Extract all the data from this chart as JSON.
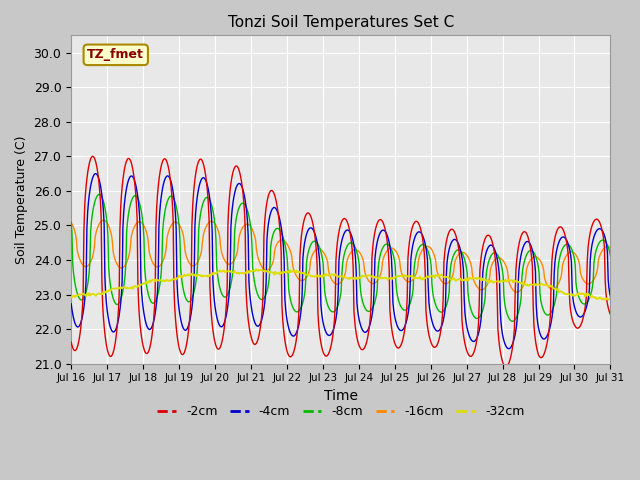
{
  "title": "Tonzi Soil Temperatures Set C",
  "xlabel": "Time",
  "ylabel": "Soil Temperature (C)",
  "ylim": [
    21.0,
    30.5
  ],
  "yticks": [
    21.0,
    22.0,
    23.0,
    24.0,
    25.0,
    26.0,
    27.0,
    28.0,
    29.0,
    30.0
  ],
  "fig_bg_color": "#c8c8c8",
  "plot_bg_color": "#e8e8e8",
  "legend_label": "TZ_fmet",
  "legend_box_facecolor": "#ffffcc",
  "legend_text_color": "#880000",
  "legend_edge_color": "#aa8800",
  "series_colors": {
    "-2cm": "#dd0000",
    "-4cm": "#0000cc",
    "-8cm": "#00bb00",
    "-16cm": "#ff8800",
    "-32cm": "#dddd00"
  },
  "n_points": 720,
  "x_start": 16.0,
  "x_end": 31.0,
  "xtick_positions": [
    16,
    17,
    18,
    19,
    20,
    21,
    22,
    23,
    24,
    25,
    26,
    27,
    28,
    29,
    30,
    31
  ],
  "xtick_labels": [
    "Jul 16",
    "Jul 17",
    "Jul 18",
    "Jul 19",
    "Jul 20",
    "Jul 21",
    "Jul 22",
    "Jul 23",
    "Jul 24",
    "Jul 25",
    "Jul 26",
    "Jul 27",
    "Jul 28",
    "Jul 29",
    "Jul 30",
    "Jul 31"
  ]
}
